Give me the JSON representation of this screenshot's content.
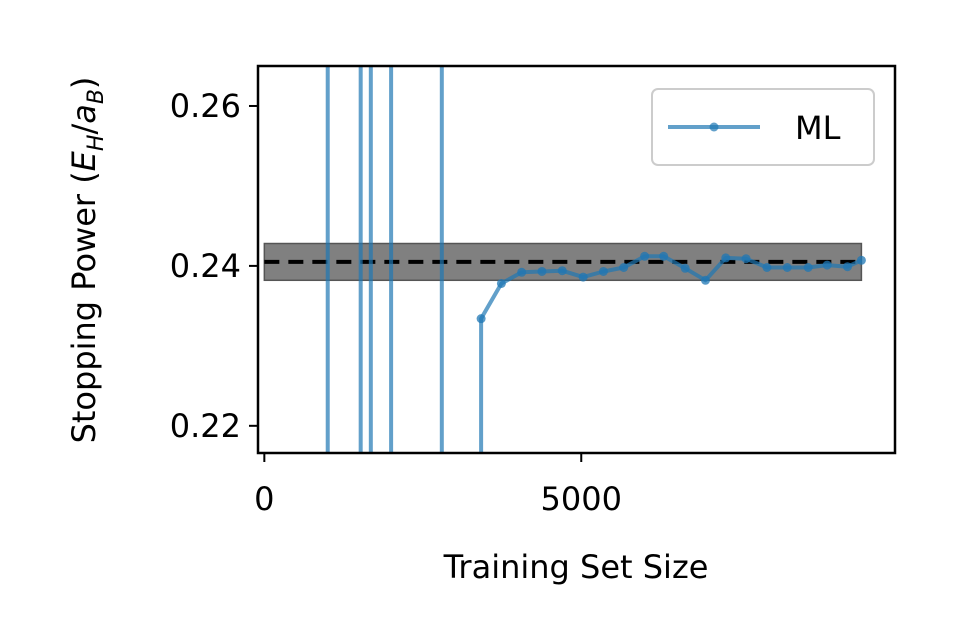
{
  "chart_data": {
    "type": "line",
    "title": "",
    "xlabel": "Training Set Size",
    "ylabel": {
      "prefix": "Stopping Power (",
      "e": "E",
      "e_sub": "H",
      "slash": "/",
      "a": "a",
      "a_sub": "B",
      "suffix": ")"
    },
    "xlim": [
      -100,
      9950
    ],
    "ylim": [
      0.2166,
      0.265
    ],
    "x_ticks": [
      0,
      5000
    ],
    "x_tick_labels": [
      "0",
      "5000"
    ],
    "y_ticks": [
      0.22,
      0.24,
      0.26
    ],
    "y_tick_labels": [
      "0.22",
      "0.24",
      "0.26"
    ],
    "grid": false,
    "legend": {
      "placement": "top-right",
      "entries": [
        "ML"
      ]
    },
    "colors": {
      "series": "#1f77b4",
      "reference_line": "#000000",
      "band": "#808080"
    },
    "reference": {
      "value": 0.2405,
      "band": [
        0.2382,
        0.2428
      ],
      "band_x": [
        0,
        9420
      ],
      "style": "dashed"
    },
    "off_scale_spikes_x": [
      1000,
      1520,
      1680,
      2000,
      2800
    ],
    "series": [
      {
        "name": "ML",
        "x": [
          3420,
          3740,
          4060,
          4380,
          4700,
          5030,
          5350,
          5670,
          6000,
          6300,
          6640,
          6960,
          7280,
          7600,
          7930,
          8250,
          8580,
          8880,
          9200,
          9420
        ],
        "values": [
          0.2334,
          0.2378,
          0.2392,
          0.2393,
          0.2394,
          0.2386,
          0.2393,
          0.2398,
          0.2412,
          0.2412,
          0.2397,
          0.2382,
          0.241,
          0.2409,
          0.2398,
          0.2398,
          0.2398,
          0.2401,
          0.2399,
          0.2407
        ]
      }
    ]
  }
}
